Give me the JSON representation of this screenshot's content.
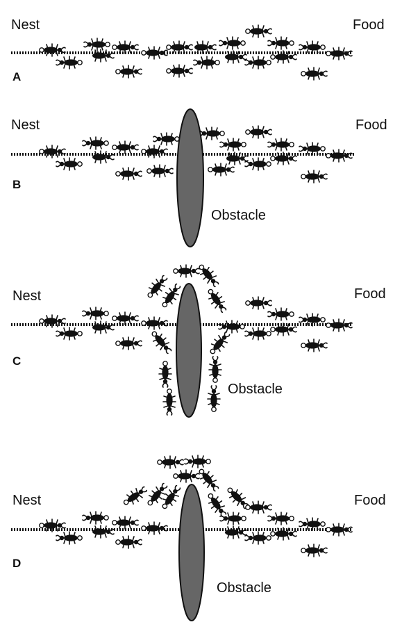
{
  "colors": {
    "ink": "#111111",
    "obstacle_fill": "#666666",
    "background": "#ffffff"
  },
  "icons": {
    "ant": "ant-icon",
    "pheromone_trail": "dotted-line"
  },
  "panels": [
    {
      "letter": "A",
      "nest_label": "Nest",
      "food_label": "Food"
    },
    {
      "letter": "B",
      "nest_label": "Nest",
      "food_label": "Food",
      "obstacle_label": "Obstacle"
    },
    {
      "letter": "C",
      "nest_label": "Nest",
      "food_label": "Food",
      "obstacle_label": "Obstacle"
    },
    {
      "letter": "D",
      "nest_label": "Nest",
      "food_label": "Food",
      "obstacle_label": "Obstacle"
    }
  ]
}
